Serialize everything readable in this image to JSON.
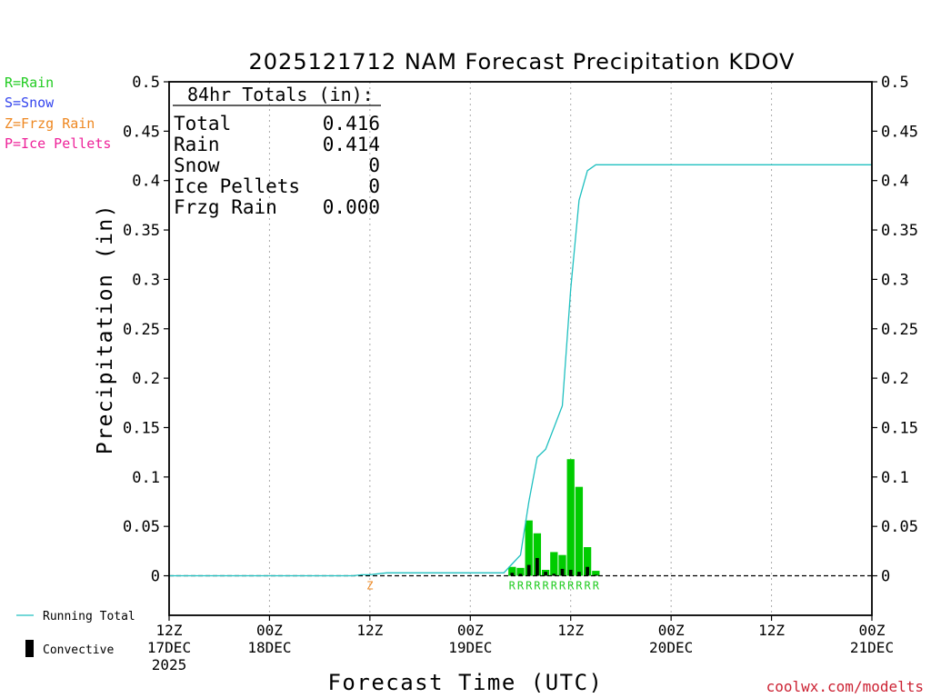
{
  "chart_data": {
    "type": "bar",
    "title": "2025121712 NAM Forecast Precipitation KDOV",
    "xlabel": "Forecast Time (UTC)",
    "ylabel": "Precipitation (in)",
    "ylim": [
      -0.04,
      0.5
    ],
    "yticks": [
      0,
      0.05,
      0.1,
      0.15,
      0.2,
      0.25,
      0.3,
      0.35,
      0.4,
      0.45,
      0.5
    ],
    "ytick_labels": [
      "0",
      "0.05",
      "0.1",
      "0.15",
      "0.2",
      "0.25",
      "0.3",
      "0.35",
      "0.4",
      "0.45",
      "0.5"
    ],
    "xlim_hours": [
      0,
      84
    ],
    "xticks": [
      {
        "hour": 0,
        "line1": "12Z",
        "line2": "17DEC",
        "line3": "2025"
      },
      {
        "hour": 12,
        "line1": "00Z",
        "line2": "18DEC",
        "line3": ""
      },
      {
        "hour": 24,
        "line1": "12Z",
        "line2": "",
        "line3": ""
      },
      {
        "hour": 36,
        "line1": "00Z",
        "line2": "19DEC",
        "line3": ""
      },
      {
        "hour": 48,
        "line1": "12Z",
        "line2": "",
        "line3": ""
      },
      {
        "hour": 60,
        "line1": "00Z",
        "line2": "20DEC",
        "line3": ""
      },
      {
        "hour": 72,
        "line1": "12Z",
        "line2": "",
        "line3": ""
      },
      {
        "hour": 84,
        "line1": "00Z",
        "line2": "21DEC",
        "line3": ""
      }
    ],
    "grid": "vertical-dotted",
    "series": [
      {
        "name": "Running Total",
        "kind": "line",
        "color": "#20c0c0",
        "x": [
          0,
          22,
          23,
          24,
          25,
          26,
          28,
          30,
          32,
          34,
          36,
          38,
          40,
          41,
          42,
          43,
          44,
          45,
          46,
          47,
          48,
          49,
          50,
          51,
          52,
          84
        ],
        "y": [
          0,
          0,
          0.001,
          0.001,
          0.002,
          0.003,
          0.003,
          0.003,
          0.003,
          0.003,
          0.003,
          0.003,
          0.003,
          0.012,
          0.021,
          0.075,
          0.12,
          0.128,
          0.15,
          0.172,
          0.29,
          0.38,
          0.41,
          0.416,
          0.416,
          0.416
        ]
      },
      {
        "name": "Rain",
        "kind": "bar",
        "color": "#00cc00",
        "x": [
          41,
          42,
          43,
          44,
          45,
          46,
          47,
          48,
          49,
          50,
          51
        ],
        "y": [
          0.009,
          0.008,
          0.056,
          0.043,
          0.006,
          0.024,
          0.021,
          0.118,
          0.09,
          0.029,
          0.005
        ]
      },
      {
        "name": "Convective",
        "kind": "bar",
        "color": "#000000",
        "x": [
          41,
          42,
          43,
          44,
          45,
          46,
          47,
          48,
          49,
          50,
          51
        ],
        "y": [
          0.003,
          0.002,
          0.011,
          0.018,
          0.004,
          0.002,
          0.007,
          0.006,
          0.004,
          0.009,
          0.001
        ]
      }
    ],
    "ptype_markers": [
      {
        "hour": 24,
        "label": "Z",
        "color": "#ee8822"
      },
      {
        "hour": 41,
        "label": "R",
        "color": "#22cc22"
      },
      {
        "hour": 42,
        "label": "R",
        "color": "#22cc22"
      },
      {
        "hour": 43,
        "label": "R",
        "color": "#22cc22"
      },
      {
        "hour": 44,
        "label": "R",
        "color": "#22cc22"
      },
      {
        "hour": 45,
        "label": "R",
        "color": "#22cc22"
      },
      {
        "hour": 46,
        "label": "R",
        "color": "#22cc22"
      },
      {
        "hour": 47,
        "label": "R",
        "color": "#22cc22"
      },
      {
        "hour": 48,
        "label": "R",
        "color": "#22cc22"
      },
      {
        "hour": 49,
        "label": "R",
        "color": "#22cc22"
      },
      {
        "hour": 50,
        "label": "R",
        "color": "#22cc22"
      },
      {
        "hour": 51,
        "label": "R",
        "color": "#22cc22"
      }
    ]
  },
  "totals": {
    "heading": "84hr Totals (in):",
    "rows": [
      {
        "label": "Total",
        "value": "0.416"
      },
      {
        "label": "Rain",
        "value": "0.414"
      },
      {
        "label": "Snow",
        "value": "0"
      },
      {
        "label": "Ice Pellets",
        "value": "0"
      },
      {
        "label": "Frzg Rain",
        "value": "0.000"
      }
    ]
  },
  "ptype_legend": [
    {
      "text": "R=Rain",
      "color": "#22cc22"
    },
    {
      "text": "S=Snow",
      "color": "#3344ee"
    },
    {
      "text": "Z=Frzg Rain",
      "color": "#ee8822"
    },
    {
      "text": "P=Ice Pellets",
      "color": "#ee2299"
    }
  ],
  "series_legend": {
    "running_total": "Running Total",
    "convective": "Convective"
  },
  "credit": "coolwx.com/modelts",
  "colors": {
    "credit": "#cc2233",
    "zero_line": "#000000"
  }
}
